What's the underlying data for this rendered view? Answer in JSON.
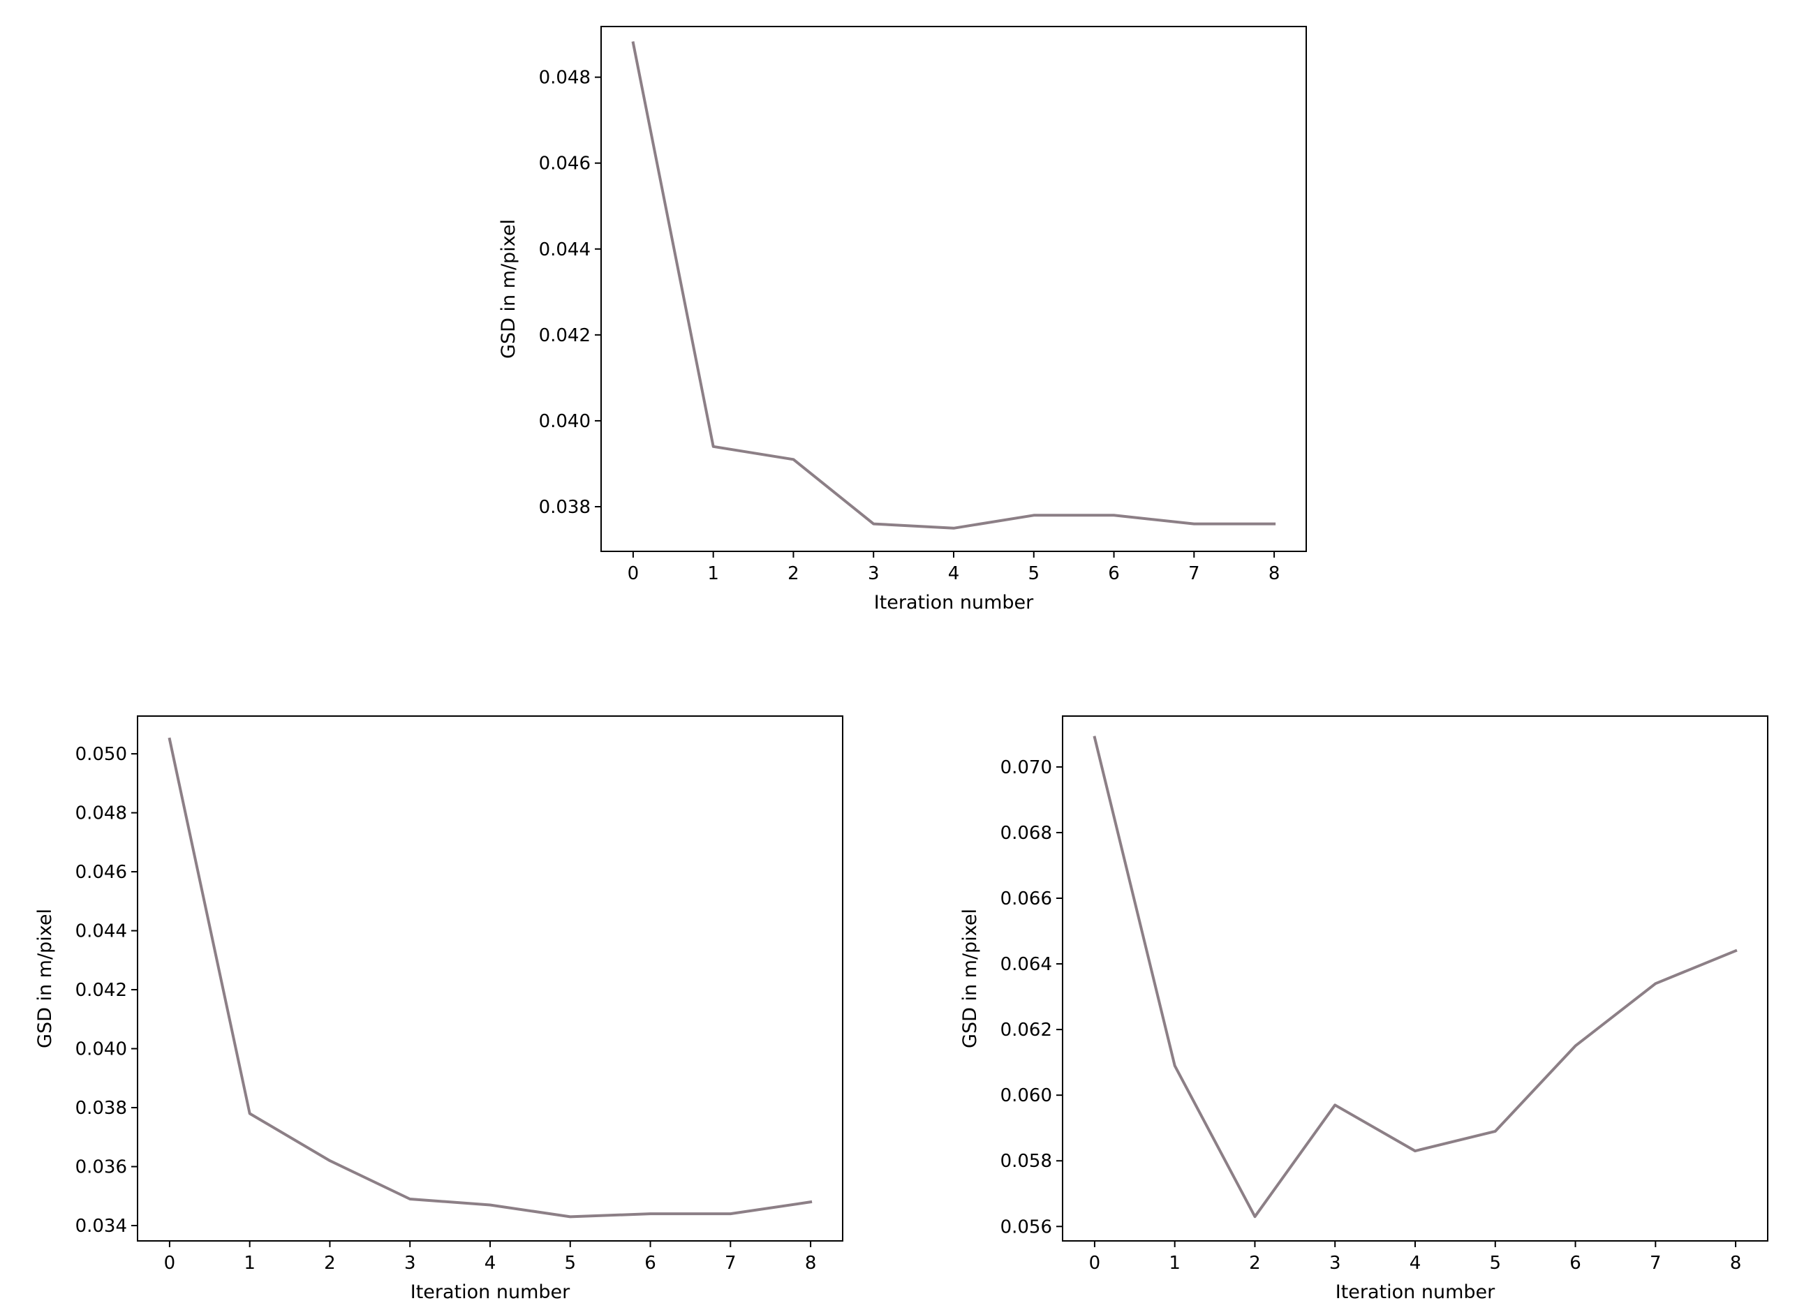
{
  "chart_data": [
    {
      "type": "line",
      "xlabel": "Iteration number",
      "ylabel": "GSD in m/pixel",
      "x": [
        0,
        1,
        2,
        3,
        4,
        5,
        6,
        7,
        8
      ],
      "xticks": [
        "0",
        "1",
        "2",
        "3",
        "4",
        "5",
        "6",
        "7",
        "8"
      ],
      "xlim": [
        -0.4,
        8.4
      ],
      "yticks": [
        "0.038",
        "0.040",
        "0.042",
        "0.044",
        "0.046",
        "0.048"
      ],
      "ylim": [
        0.03696,
        0.04918
      ],
      "grid": false,
      "series": [
        {
          "values": [
            0.0488,
            0.0394,
            0.0391,
            0.0376,
            0.0375,
            0.0378,
            0.0378,
            0.0376,
            0.0376
          ]
        }
      ]
    },
    {
      "type": "line",
      "xlabel": "Iteration number",
      "ylabel": "GSD in m/pixel",
      "x": [
        0,
        1,
        2,
        3,
        4,
        5,
        6,
        7,
        8
      ],
      "xticks": [
        "0",
        "1",
        "2",
        "3",
        "4",
        "5",
        "6",
        "7",
        "8"
      ],
      "xlim": [
        -0.4,
        8.4
      ],
      "yticks": [
        "0.034",
        "0.036",
        "0.038",
        "0.040",
        "0.042",
        "0.044",
        "0.046",
        "0.048",
        "0.050"
      ],
      "ylim": [
        0.03348,
        0.05128
      ],
      "grid": false,
      "series": [
        {
          "values": [
            0.0505,
            0.0378,
            0.0362,
            0.0349,
            0.0347,
            0.0343,
            0.0344,
            0.0344,
            0.0348
          ]
        }
      ]
    },
    {
      "type": "line",
      "xlabel": "Iteration number",
      "ylabel": "GSD in m/pixel",
      "x": [
        0,
        1,
        2,
        3,
        4,
        5,
        6,
        7,
        8
      ],
      "xticks": [
        "0",
        "1",
        "2",
        "3",
        "4",
        "5",
        "6",
        "7",
        "8"
      ],
      "xlim": [
        -0.4,
        8.4
      ],
      "yticks": [
        "0.056",
        "0.058",
        "0.060",
        "0.062",
        "0.064",
        "0.066",
        "0.068",
        "0.070"
      ],
      "ylim": [
        0.05556,
        0.07155
      ],
      "grid": false,
      "series": [
        {
          "values": [
            0.0709,
            0.0609,
            0.0563,
            0.0597,
            0.0583,
            0.0589,
            0.0615,
            0.0634,
            0.0644
          ]
        }
      ]
    }
  ],
  "colors": {
    "line": "#8c7f86",
    "axes": "#000000",
    "background": "#ffffff"
  }
}
